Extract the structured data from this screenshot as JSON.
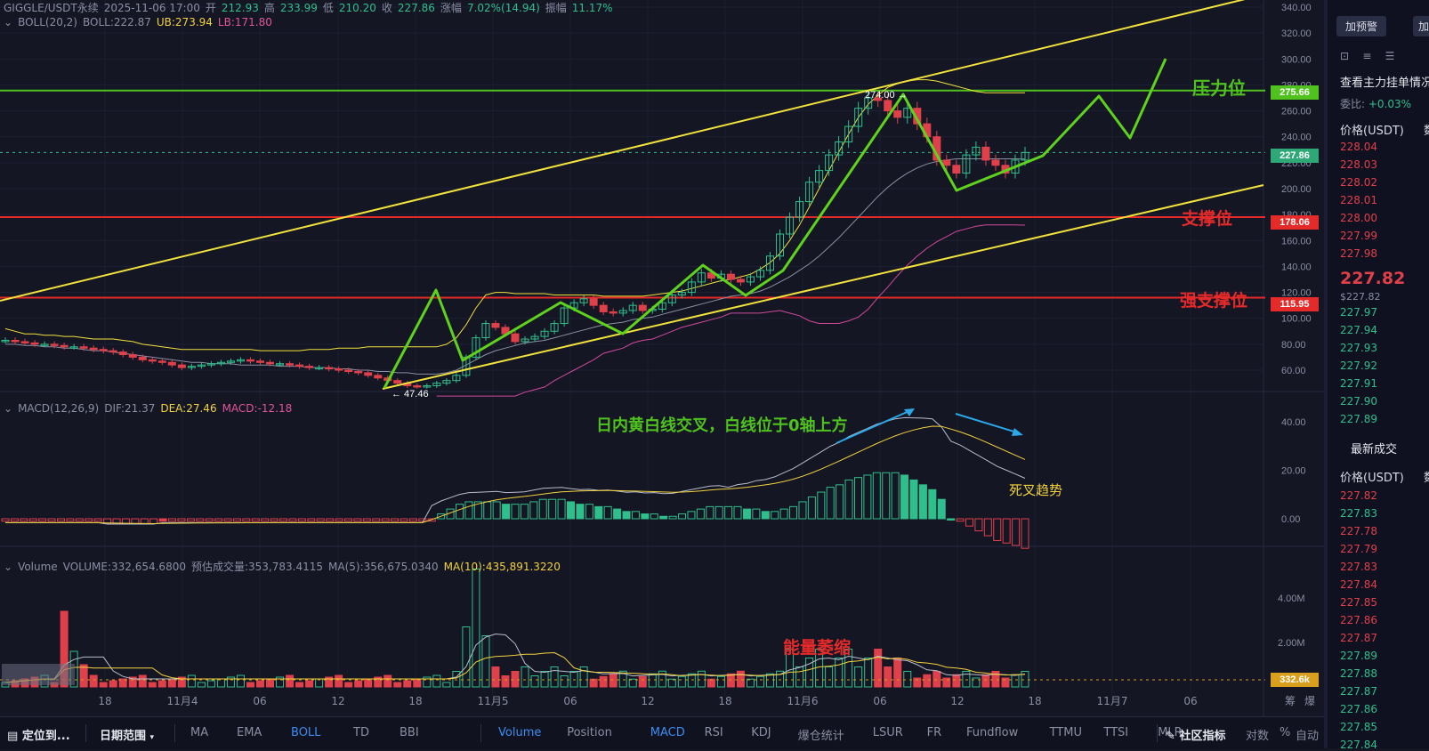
{
  "header": {
    "symbol": "GIGGLE/USDT永续",
    "datetime": "2025-11-06 17:00",
    "open_label": "开",
    "open": "212.93",
    "high_label": "高",
    "high": "233.99",
    "low_label": "低",
    "low": "210.20",
    "close_label": "收",
    "close": "227.86",
    "change_label": "涨幅",
    "change": "7.02%(14.94)",
    "amp_label": "振幅",
    "amp": "11.17%"
  },
  "boll_header": {
    "name": "BOLL(20,2)",
    "boll": "BOLL:222.87",
    "ub": "UB:273.94",
    "lb": "LB:171.80"
  },
  "macd_header": {
    "name": "MACD(12,26,9)",
    "dif": "DIF:21.37",
    "dea": "DEA:27.46",
    "macd": "MACD:-12.18"
  },
  "vol_header": {
    "name": "Volume",
    "volume": "VOLUME:332,654.6800",
    "est": "预估成交量:353,783.4115",
    "ma5": "MA(5):356,675.0340",
    "ma10": "MA(10):435,891.3220"
  },
  "annotations": {
    "resistance": "压力位",
    "support": "支撑位",
    "strong_support": "强支撑位",
    "macd_note": "日内黄白线交叉，白线位于0轴上方",
    "death_cross": "死叉趋势",
    "volume_note": "能量萎缩",
    "high_marker": "274.00",
    "low_marker": "47.46"
  },
  "price_boxes": {
    "resistance": "275.66",
    "current": "227.86",
    "support": "178.06",
    "strong_support": "115.95",
    "volume_current": "332.6k"
  },
  "colors": {
    "up": "#2fbf8c",
    "down": "#e0404a",
    "trend": "#f2e23c",
    "wave": "#5fd21e",
    "resistance": "#4fc21e",
    "support": "#e52a2a"
  },
  "right_panel": {
    "alert_btn": "加预警",
    "alert_btn2": "加自",
    "orderbook_title": "查看主力挂单情况",
    "ratio_label": "委比:",
    "ratio": "+0.03%",
    "price_col": "价格(USDT)",
    "qty_col": "数",
    "asks": [
      "228.04",
      "228.03",
      "228.02",
      "228.01",
      "228.00",
      "227.99",
      "227.98"
    ],
    "last_price": "227.82",
    "last_price_sub": "$227.82",
    "bids": [
      "227.97",
      "227.94",
      "227.93",
      "227.92",
      "227.91",
      "227.90",
      "227.89"
    ],
    "trades_title": "最新成交",
    "trades_price_col": "价格(USDT)",
    "trades_qty_col": "数",
    "trades": [
      "227.82",
      "227.83",
      "227.78",
      "227.79",
      "227.83",
      "227.84",
      "227.85",
      "227.86",
      "227.87",
      "227.89",
      "227.88",
      "227.87",
      "227.86",
      "227.85",
      "227.84"
    ]
  },
  "toolbar": {
    "locate": "定位到...",
    "range": "日期范围",
    "indicators_main": [
      "MA",
      "EMA",
      "BOLL",
      "TD",
      "BBI"
    ],
    "indicators_sub": [
      "Volume",
      "Position",
      "MACD",
      "RSI",
      "KDJ",
      "爆仓统计",
      "LSUR",
      "FR",
      "Fundflow",
      "TTMU",
      "TTSI",
      "MLR"
    ],
    "community": "社区指标",
    "log": "对数",
    "percent": "%",
    "auto": "自动",
    "chip": "筹",
    "burst": "爆"
  },
  "chart_data": [
    {
      "type": "candlestick",
      "title": "GIGGLE/USDT永续",
      "interval_note": "hourly candles",
      "y_ticks": [
        340,
        320,
        300,
        280,
        260,
        240,
        220,
        200,
        180,
        160,
        140,
        120,
        100,
        80,
        60
      ],
      "x_ticks": [
        "18",
        "11月4",
        "06",
        "12",
        "18",
        "11月5",
        "06",
        "12",
        "18",
        "11月6",
        "06",
        "12",
        "18",
        "11月7",
        "06"
      ],
      "ylim": [
        40,
        345
      ],
      "horizontal_levels": [
        {
          "name": "压力位",
          "value": 275.66
        },
        {
          "name": "支撑位",
          "value": 178.06
        },
        {
          "name": "强支撑位",
          "value": 115.95
        }
      ],
      "current_price": 227.86,
      "candles_close": [
        83,
        82,
        81,
        80,
        80,
        79,
        78,
        78,
        77,
        76,
        75,
        74,
        72,
        70,
        68,
        67,
        66,
        64,
        62,
        63,
        64,
        65,
        66,
        67,
        68,
        67,
        66,
        65,
        65,
        64,
        63,
        62,
        62,
        61,
        60,
        59,
        58,
        56,
        54,
        52,
        50,
        48,
        47.5,
        48,
        50,
        52,
        56,
        70,
        85,
        96,
        93,
        88,
        82,
        84,
        86,
        90,
        96,
        108,
        112,
        115,
        110,
        105,
        104,
        106,
        110,
        106,
        107,
        112,
        118,
        120,
        128,
        135,
        131,
        134,
        130,
        128,
        132,
        137,
        148,
        165,
        178,
        190,
        205,
        214,
        226,
        236,
        248,
        262,
        270,
        268,
        260,
        255,
        262,
        250,
        240,
        222,
        218,
        212,
        226,
        232,
        222,
        218,
        212,
        222,
        227.86
      ],
      "boll_ub": [
        92,
        90,
        88,
        88,
        87,
        87,
        86,
        86,
        85,
        84,
        84,
        84,
        83,
        82,
        80,
        79,
        78,
        77,
        76,
        76,
        76,
        76,
        76,
        76,
        76,
        76,
        75,
        75,
        75,
        75,
        75,
        76,
        76,
        76,
        77,
        77,
        77,
        78,
        78,
        78,
        78,
        78,
        78,
        78,
        78,
        80,
        85,
        95,
        108,
        118,
        120,
        120,
        119,
        119,
        119,
        119,
        118,
        118,
        118,
        118,
        118,
        117,
        117,
        117,
        117,
        117,
        118,
        119,
        120,
        121,
        123,
        125,
        127,
        129,
        130,
        132,
        134,
        138,
        143,
        150,
        160,
        172,
        186,
        200,
        214,
        228,
        242,
        255,
        265,
        272,
        278,
        281,
        283,
        284,
        284,
        283,
        281,
        279,
        277,
        275,
        274,
        274,
        274,
        274,
        273.9
      ],
      "boll_mid": [
        80,
        80,
        79,
        79,
        78,
        78,
        77,
        77,
        76,
        75,
        75,
        74,
        73,
        72,
        71,
        70,
        69,
        68,
        67,
        66,
        66,
        65,
        65,
        65,
        64,
        64,
        64,
        64,
        63,
        63,
        63,
        62,
        62,
        62,
        61,
        61,
        60,
        60,
        59,
        59,
        58,
        58,
        57,
        57,
        57,
        58,
        60,
        64,
        68,
        72,
        75,
        77,
        79,
        81,
        82,
        83,
        85,
        87,
        89,
        91,
        93,
        95,
        96,
        97,
        99,
        100,
        101,
        103,
        105,
        107,
        109,
        111,
        113,
        115,
        117,
        118,
        119,
        121,
        124,
        128,
        132,
        137,
        142,
        148,
        155,
        162,
        170,
        178,
        186,
        194,
        201,
        207,
        212,
        216,
        219,
        221,
        222,
        223,
        223,
        223,
        223,
        223,
        223,
        223,
        222.87
      ],
      "boll_lb": [
        null,
        null,
        null,
        null,
        null,
        null,
        null,
        null,
        null,
        null,
        null,
        null,
        null,
        null,
        null,
        null,
        null,
        null,
        null,
        null,
        null,
        null,
        null,
        null,
        null,
        null,
        null,
        null,
        null,
        null,
        null,
        null,
        null,
        null,
        null,
        null,
        null,
        null,
        null,
        null,
        null,
        null,
        null,
        null,
        null,
        null,
        null,
        null,
        null,
        null,
        null,
        null,
        null,
        null,
        null,
        null,
        null,
        null,
        null,
        null,
        null,
        null,
        null,
        null,
        null,
        null,
        null,
        null,
        null,
        null,
        null,
        null,
        null,
        null,
        null,
        null,
        null,
        null,
        null,
        null,
        null,
        null,
        null,
        null,
        null,
        null,
        null,
        null,
        null,
        null,
        null,
        null,
        null,
        null,
        null,
        null,
        null,
        null,
        null,
        null,
        null,
        null,
        null,
        null,
        171.8
      ]
    },
    {
      "type": "bar",
      "title": "MACD(12,26,9)",
      "y_ticks": [
        40,
        20,
        0
      ],
      "macd_hist": [
        -1,
        -1,
        -1,
        -1,
        -1,
        -1,
        -1,
        -1,
        -1,
        -1,
        -1,
        -2,
        -2,
        -2,
        -2,
        -2,
        -2,
        -1,
        -1,
        -1,
        -1,
        -1,
        -1,
        -1,
        -1,
        -1,
        -1,
        -1,
        -1,
        -1,
        -1,
        -1,
        -1,
        -1,
        -1,
        -1,
        -1,
        -1,
        -1,
        -1,
        -1,
        -1,
        -1,
        -1,
        -1,
        -1,
        -1,
        2,
        4,
        6,
        7,
        7,
        7,
        7,
        6,
        6,
        6,
        7,
        8,
        8,
        8,
        7,
        6,
        6,
        5,
        5,
        4,
        3,
        3,
        2,
        2,
        1,
        1,
        2,
        3,
        4,
        5,
        5,
        5,
        5,
        4,
        4,
        3,
        3,
        4,
        5,
        7,
        9,
        11,
        13,
        14,
        16,
        17,
        18,
        19,
        19,
        19,
        18,
        16,
        14,
        12,
        8,
        0,
        -1,
        -3,
        -5,
        -7,
        -9,
        -10,
        -11,
        -12.18
      ]
    },
    {
      "type": "bar",
      "title": "Volume",
      "y_ticks": [
        "4.00M",
        "2.00M"
      ],
      "current": "332.6k"
    }
  ]
}
